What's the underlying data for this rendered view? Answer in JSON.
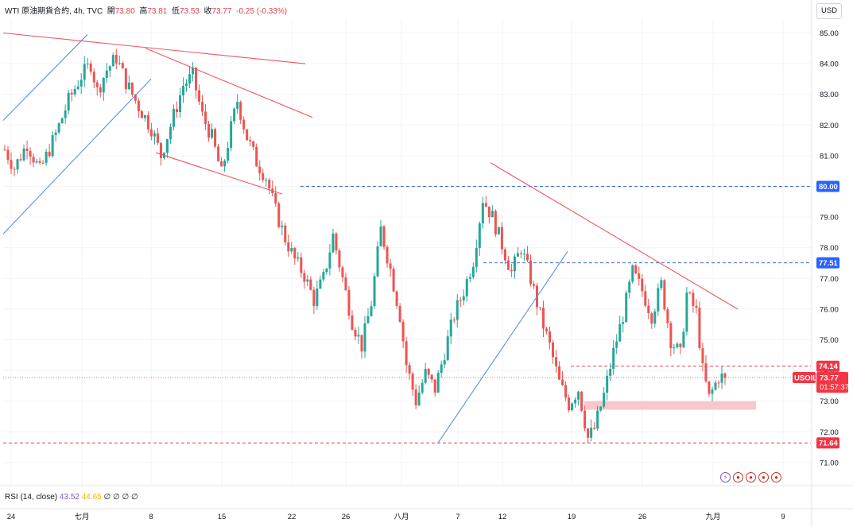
{
  "legend": {
    "symbol": "WTI 原油期貨合約",
    "interval": "4h",
    "source": "TVC",
    "open_label": "開",
    "open": "73.80",
    "high_label": "高",
    "high": "73.81",
    "low_label": "低",
    "low": "73.53",
    "close_label": "收",
    "close": "73.77",
    "change": "-0.25 (-0.33%)"
  },
  "currency": "USD",
  "rsi": {
    "label": "RSI (14, close)",
    "value1": "43.52",
    "value2": "44.65",
    "extras": "∅ ∅ ∅ ∅"
  },
  "colors": {
    "up": "#26a69a",
    "down": "#ef5350",
    "trend_red": "#f2545b",
    "trend_blue": "#5b8def",
    "zone": "#f8c7cb"
  },
  "chart_data": {
    "type": "candlestick",
    "title": "",
    "y_ticks": [
      "85.00",
      "84.00",
      "83.00",
      "82.00",
      "81.00",
      "80.00",
      "79.00",
      "78.00",
      "77.00",
      "76.00",
      "75.00",
      "74.00",
      "73.00",
      "72.00",
      "71.00"
    ],
    "ylim": [
      70.4,
      85.6
    ],
    "x_ticks": [
      "24",
      "七月",
      "8",
      "15",
      "22",
      "26",
      "八月",
      "7",
      "12",
      "19",
      "26",
      "九月",
      "9"
    ],
    "price_tags": [
      {
        "value": 80.0,
        "label": "80.00",
        "style": "blue"
      },
      {
        "value": 77.51,
        "label": "77.51",
        "style": "blue"
      },
      {
        "value": 74.14,
        "label": "74.14",
        "style": "red"
      },
      {
        "value": 71.64,
        "label": "71.64",
        "style": "red"
      }
    ],
    "current": {
      "symbol": "USOIL",
      "price": "73.77",
      "countdown": "01:57:37"
    },
    "waypoints": [
      [
        0,
        81.2
      ],
      [
        3,
        80.6
      ],
      [
        7,
        81.4
      ],
      [
        11,
        80.5
      ],
      [
        16,
        81.7
      ],
      [
        20,
        82.8
      ],
      [
        24,
        83.6
      ],
      [
        27,
        84.0
      ],
      [
        29,
        83.1
      ],
      [
        32,
        83.8
      ],
      [
        35,
        84.2
      ],
      [
        38,
        83.4
      ],
      [
        42,
        82.6
      ],
      [
        46,
        81.9
      ],
      [
        49,
        81.0
      ],
      [
        53,
        82.3
      ],
      [
        56,
        83.3
      ],
      [
        59,
        83.6
      ],
      [
        62,
        82.3
      ],
      [
        65,
        81.6
      ],
      [
        68,
        80.4
      ],
      [
        71,
        81.9
      ],
      [
        73,
        82.8
      ],
      [
        76,
        81.6
      ],
      [
        79,
        80.8
      ],
      [
        82,
        80.3
      ],
      [
        85,
        79.2
      ],
      [
        88,
        78.3
      ],
      [
        91,
        77.6
      ],
      [
        94,
        77.1
      ],
      [
        97,
        76.3
      ],
      [
        100,
        77.0
      ],
      [
        103,
        78.4
      ],
      [
        106,
        77.0
      ],
      [
        109,
        75.6
      ],
      [
        112,
        74.8
      ],
      [
        115,
        76.2
      ],
      [
        118,
        78.6
      ],
      [
        121,
        77.3
      ],
      [
        124,
        75.8
      ],
      [
        126,
        74.2
      ],
      [
        129,
        73.0
      ],
      [
        132,
        73.9
      ],
      [
        135,
        73.4
      ],
      [
        138,
        74.6
      ],
      [
        141,
        75.8
      ],
      [
        144,
        76.6
      ],
      [
        147,
        77.6
      ],
      [
        150,
        79.6
      ],
      [
        153,
        79.0
      ],
      [
        156,
        78.1
      ],
      [
        159,
        77.2
      ],
      [
        162,
        78.0
      ],
      [
        165,
        77.0
      ],
      [
        168,
        75.8
      ],
      [
        171,
        74.8
      ],
      [
        174,
        73.6
      ],
      [
        177,
        72.9
      ],
      [
        180,
        73.4
      ],
      [
        183,
        71.8
      ],
      [
        185,
        72.1
      ],
      [
        188,
        73.2
      ],
      [
        191,
        74.6
      ],
      [
        194,
        75.8
      ],
      [
        197,
        77.2
      ],
      [
        200,
        76.6
      ],
      [
        203,
        75.8
      ],
      [
        206,
        76.8
      ],
      [
        209,
        75.0
      ],
      [
        212,
        74.5
      ],
      [
        214,
        76.5
      ],
      [
        217,
        75.9
      ],
      [
        219,
        74.0
      ],
      [
        221,
        73.1
      ],
      [
        224,
        73.8
      ],
      [
        226,
        73.77
      ]
    ]
  }
}
